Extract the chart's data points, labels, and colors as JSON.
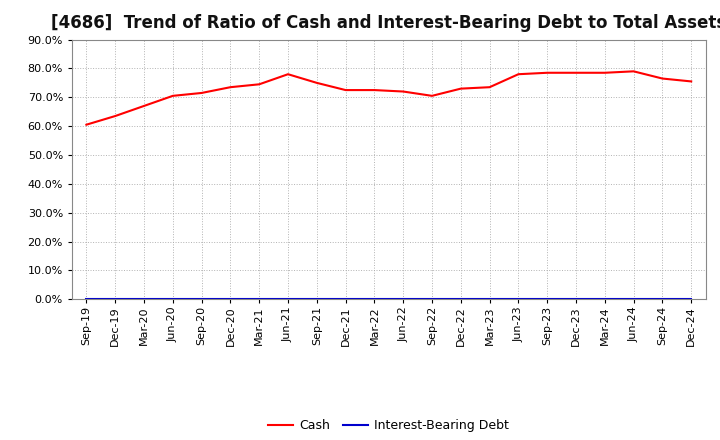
{
  "title": "[4686]  Trend of Ratio of Cash and Interest-Bearing Debt to Total Assets",
  "x_labels": [
    "Sep-19",
    "Dec-19",
    "Mar-20",
    "Jun-20",
    "Sep-20",
    "Dec-20",
    "Mar-21",
    "Jun-21",
    "Sep-21",
    "Dec-21",
    "Mar-22",
    "Jun-22",
    "Sep-22",
    "Dec-22",
    "Mar-23",
    "Jun-23",
    "Sep-23",
    "Dec-23",
    "Mar-24",
    "Jun-24",
    "Sep-24",
    "Dec-24"
  ],
  "cash_values": [
    60.5,
    63.5,
    67.0,
    70.5,
    71.5,
    73.5,
    74.5,
    78.0,
    75.0,
    72.5,
    72.5,
    72.0,
    70.5,
    73.0,
    73.5,
    78.0,
    78.5,
    78.5,
    78.5,
    79.0,
    76.5,
    75.5
  ],
  "debt_values": [
    0.0,
    0.0,
    0.0,
    0.0,
    0.0,
    0.0,
    0.0,
    0.0,
    0.0,
    0.0,
    0.0,
    0.0,
    0.0,
    0.0,
    0.0,
    0.0,
    0.0,
    0.0,
    0.0,
    0.0,
    0.0,
    0.0
  ],
  "cash_color": "#ff0000",
  "debt_color": "#0000cd",
  "ylim": [
    0,
    90
  ],
  "yticks": [
    0,
    10,
    20,
    30,
    40,
    50,
    60,
    70,
    80,
    90
  ],
  "background_color": "#ffffff",
  "grid_color": "#aaaaaa",
  "title_fontsize": 12,
  "tick_fontsize": 8,
  "legend_labels": [
    "Cash",
    "Interest-Bearing Debt"
  ]
}
